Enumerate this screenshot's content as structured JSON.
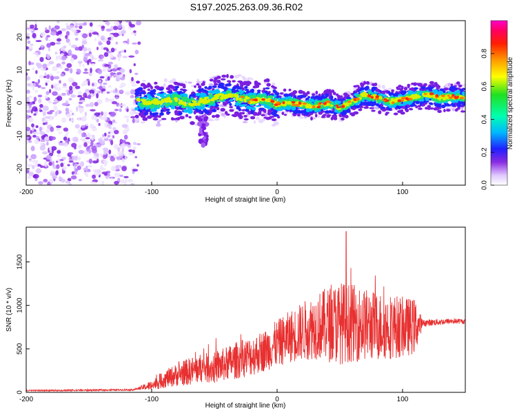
{
  "title": "S197.2025.263.09.36.R02",
  "chart_data": [
    {
      "type": "heatmap",
      "name": "spectrogram",
      "xlabel": "Height of straight line (km)",
      "ylabel": "Frequency (Hz)",
      "xlim": [
        -200,
        150
      ],
      "ylim": [
        -25,
        25
      ],
      "xticks": [
        -200,
        -100,
        0,
        100
      ],
      "yticks": [
        -20,
        -10,
        0,
        10,
        20
      ],
      "colorbar": {
        "label": "Normalized spectral amplitude",
        "range": [
          0.0,
          1.0
        ],
        "ticks": [
          0.0,
          0.2,
          0.4,
          0.6,
          0.8
        ]
      },
      "ridge_center_hz": [
        [
          -110,
          0.5
        ],
        [
          -100,
          0.0
        ],
        [
          -90,
          0.5
        ],
        [
          -80,
          1.0
        ],
        [
          -70,
          -0.5
        ],
        [
          -60,
          0.5
        ],
        [
          -50,
          1.5
        ],
        [
          -40,
          2.5
        ],
        [
          -30,
          1.5
        ],
        [
          -20,
          0.5
        ],
        [
          -10,
          1.5
        ],
        [
          0,
          -0.5
        ],
        [
          10,
          0.0
        ],
        [
          20,
          -0.5
        ],
        [
          30,
          -1.0
        ],
        [
          40,
          0.0
        ],
        [
          50,
          -1.5
        ],
        [
          60,
          0.5
        ],
        [
          70,
          2.5
        ],
        [
          80,
          1.5
        ],
        [
          90,
          0.5
        ],
        [
          100,
          1.0
        ],
        [
          110,
          2.0
        ],
        [
          120,
          2.5
        ],
        [
          130,
          1.5
        ],
        [
          140,
          2.0
        ],
        [
          150,
          1.5
        ]
      ]
    },
    {
      "type": "line",
      "name": "snr",
      "xlabel": "Height of straight line (km)",
      "ylabel": "SNR (10 * v/v)",
      "xlim": [
        -200,
        150
      ],
      "ylim": [
        0,
        1900
      ],
      "xticks": [
        -200,
        -100,
        0,
        100
      ],
      "yticks": [
        0,
        500,
        1000,
        1500
      ],
      "color": "#e83030",
      "envelope": [
        [
          -200,
          20
        ],
        [
          -150,
          25
        ],
        [
          -115,
          30
        ],
        [
          -100,
          80
        ],
        [
          -90,
          150
        ],
        [
          -80,
          200
        ],
        [
          -70,
          240
        ],
        [
          -60,
          280
        ],
        [
          -50,
          280
        ],
        [
          -40,
          330
        ],
        [
          -30,
          380
        ],
        [
          -20,
          420
        ],
        [
          -10,
          480
        ],
        [
          0,
          560
        ],
        [
          10,
          640
        ],
        [
          20,
          700
        ],
        [
          30,
          760
        ],
        [
          40,
          780
        ],
        [
          50,
          800
        ],
        [
          60,
          800
        ],
        [
          70,
          780
        ],
        [
          80,
          760
        ],
        [
          90,
          760
        ],
        [
          100,
          750
        ],
        [
          110,
          760
        ],
        [
          118,
          800
        ],
        [
          130,
          810
        ],
        [
          140,
          820
        ],
        [
          150,
          815
        ]
      ],
      "noise_amplitude": [
        [
          -200,
          8
        ],
        [
          -112,
          10
        ],
        [
          -105,
          40
        ],
        [
          -90,
          100
        ],
        [
          -70,
          160
        ],
        [
          -50,
          180
        ],
        [
          -30,
          220
        ],
        [
          -10,
          240
        ],
        [
          10,
          300
        ],
        [
          30,
          380
        ],
        [
          50,
          480
        ],
        [
          70,
          420
        ],
        [
          90,
          380
        ],
        [
          110,
          320
        ],
        [
          116,
          40
        ],
        [
          150,
          30
        ]
      ],
      "peak": [
        55,
        1850
      ]
    }
  ]
}
